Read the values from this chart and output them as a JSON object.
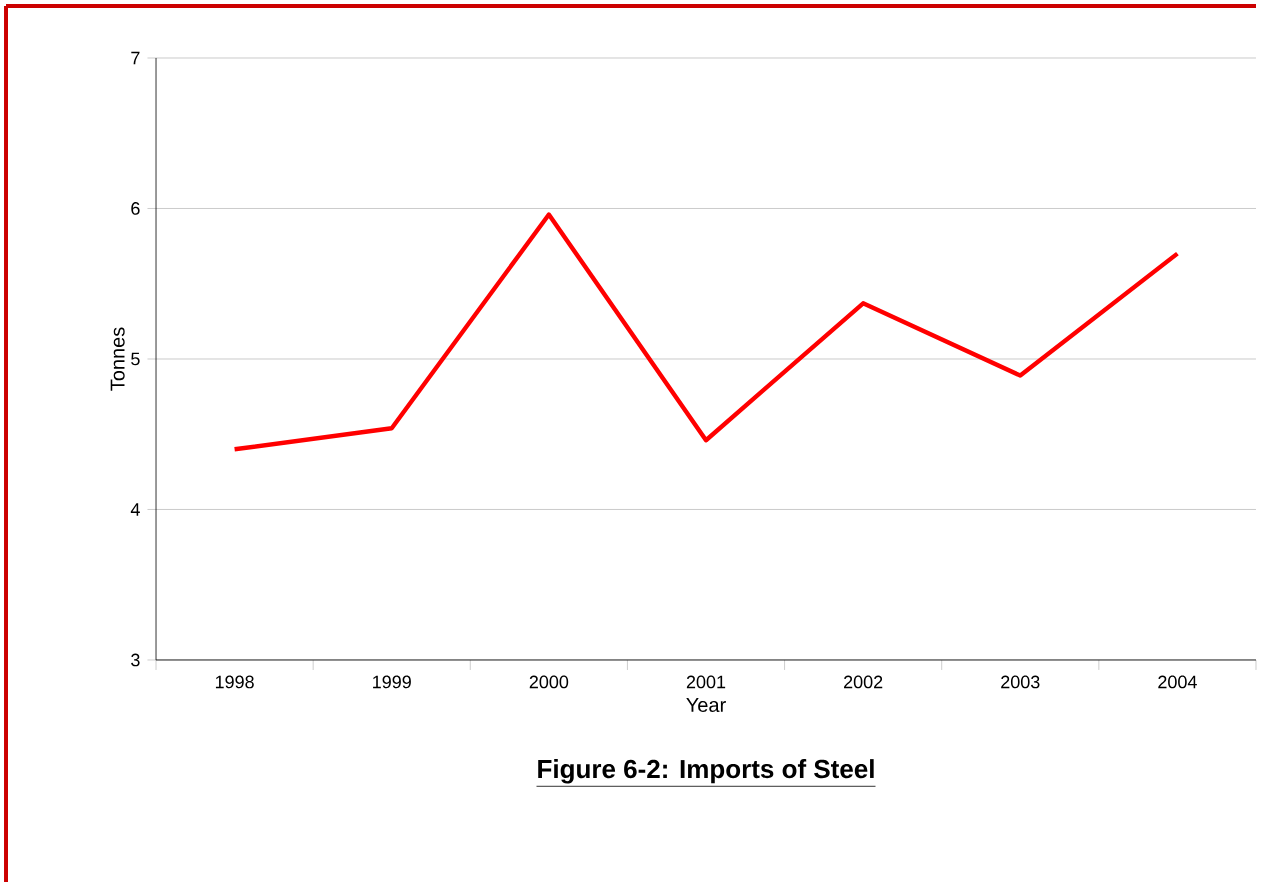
{
  "chart_data": {
    "type": "line",
    "title": "Figure 6-2: Imports of Steel",
    "xlabel": "Year",
    "ylabel": "Tonnes",
    "categories": [
      "1998",
      "1999",
      "2000",
      "2001",
      "2002",
      "2003",
      "2004"
    ],
    "series": [
      {
        "color": "#ff0000",
        "values": [
          4.4,
          4.54,
          5.96,
          4.46,
          5.37,
          4.89,
          5.7
        ]
      }
    ],
    "ylim": [
      3,
      7
    ],
    "yticks": [
      3,
      4,
      5,
      6,
      7
    ],
    "grid": "y",
    "marker": "none",
    "line_style": "solid"
  }
}
